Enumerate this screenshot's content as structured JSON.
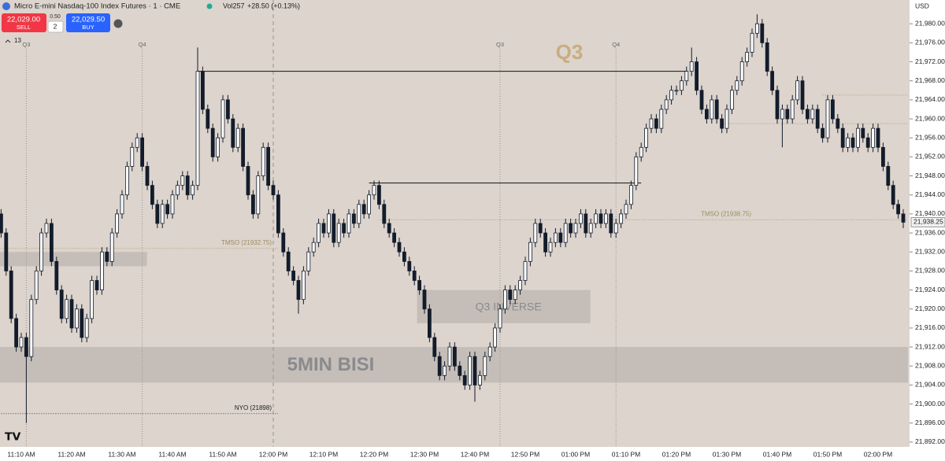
{
  "header": {
    "symbol": "Micro E-mini Nasdaq-100 Index Futures · 1 · CME",
    "volume": "Vol257",
    "change": "+28.50 (+0.13%)",
    "sell_price": "22,029.00",
    "sell": "SELL",
    "spread": "0.50",
    "quantity": "2",
    "buy_price": "22,029.50",
    "buy": "BUY",
    "indicator_count": "13",
    "currency": "USD"
  },
  "chart_data": {
    "type": "candlestick",
    "categories": [
      null,
      null,
      null,
      null,
      "11:10 AM",
      null,
      null,
      null,
      null,
      null,
      null,
      null,
      null,
      null,
      "11:20 AM",
      null,
      null,
      null,
      null,
      null,
      null,
      null,
      null,
      null,
      "11:30 AM",
      null,
      null,
      null,
      null,
      null,
      null,
      null,
      null,
      null,
      "11:40 AM",
      null,
      null,
      null,
      null,
      null,
      null,
      null,
      null,
      null,
      "11:50 AM",
      null,
      null,
      null,
      null,
      null,
      null,
      null,
      null,
      null,
      "12:00 PM",
      null,
      null,
      null,
      null,
      null,
      null,
      null,
      null,
      null,
      "12:10 PM",
      null,
      null,
      null,
      null,
      null,
      null,
      null,
      null,
      null,
      "12:20 PM",
      null,
      null,
      null,
      null,
      null,
      null,
      null,
      null,
      null,
      "12:30 PM",
      null,
      null,
      null,
      null,
      null,
      null,
      null,
      null,
      null,
      "12:40 PM",
      null,
      null,
      null,
      null,
      null,
      null,
      null,
      null,
      null,
      "12:50 PM",
      null,
      null,
      null,
      null,
      null,
      null,
      null,
      null,
      null,
      "01:00 PM",
      null,
      null,
      null,
      null,
      null,
      null,
      null,
      null,
      null,
      "01:10 PM",
      null,
      null,
      null,
      null,
      null,
      null,
      null,
      null,
      null,
      "01:20 PM",
      null,
      null,
      null,
      null,
      null,
      null,
      null,
      null,
      null,
      "01:30 PM",
      null,
      null,
      null,
      null,
      null,
      null,
      null,
      null,
      null,
      "01:40 PM",
      null,
      null,
      null,
      null,
      null,
      null,
      null,
      null,
      null,
      "01:50 PM",
      null,
      null,
      null,
      null,
      null,
      null,
      null,
      null,
      null,
      "02:00 PM",
      null,
      null,
      null,
      null,
      null
    ],
    "open": [
      21940,
      21936,
      21928,
      21918,
      21912,
      21914,
      21910,
      21922,
      21928,
      21936,
      21938,
      21930,
      21924,
      21918,
      21922,
      21916,
      21920,
      21914,
      21918,
      21926,
      21924,
      21932,
      21930,
      21936,
      21940,
      21944,
      21950,
      21954,
      21956,
      21950,
      21946,
      21942,
      21938,
      21942,
      21940,
      21944,
      21946,
      21948,
      21944,
      21946,
      21970,
      21962,
      21958,
      21952,
      21956,
      21964,
      21960,
      21954,
      21958,
      21950,
      21944,
      21940,
      21948,
      21954,
      21946,
      21944,
      21936,
      21932,
      21928,
      21926,
      21922,
      21928,
      21932,
      21934,
      21938,
      21936,
      21940,
      21934,
      21938,
      21936,
      21940,
      21938,
      21942,
      21940,
      21944,
      21946,
      21942,
      21938,
      21936,
      21934,
      21932,
      21930,
      21928,
      21926,
      21924,
      21920,
      21914,
      21910,
      21906,
      21908,
      21912,
      21908,
      21906,
      21904,
      21910,
      21904,
      21906,
      21910,
      21912,
      21916,
      21920,
      21924,
      21922,
      21924,
      21926,
      21930,
      21934,
      21938,
      21936,
      21932,
      21934,
      21936,
      21934,
      21938,
      21936,
      21938,
      21940,
      21936,
      21938,
      21940,
      21938,
      21940,
      21936,
      21938,
      21940,
      21942,
      21946,
      21952,
      21954,
      21958,
      21960,
      21958,
      21962,
      21964,
      21966,
      21966,
      21968,
      21970,
      21972,
      21966,
      21962,
      21960,
      21964,
      21960,
      21958,
      21962,
      21966,
      21968,
      21972,
      21974,
      21978,
      21980,
      21976,
      21970,
      21966,
      21960,
      21962,
      21960,
      21964,
      21968,
      21962,
      21960,
      21962,
      21958,
      21956,
      21964,
      21960,
      21958,
      21954,
      21956,
      21954,
      21958,
      21956,
      21954,
      21958,
      21954,
      21950,
      21946,
      21942,
      21940
    ],
    "high": [
      21941,
      21937,
      21929,
      21919,
      21915,
      21915,
      21923,
      21929,
      21937,
      21939,
      21939,
      21931,
      21925,
      21923,
      21923,
      21921,
      21921,
      21919,
      21927,
      21927,
      21933,
      21933,
      21937,
      21941,
      21945,
      21951,
      21955,
      21957,
      21957,
      21951,
      21947,
      21943,
      21943,
      21943,
      21945,
      21947,
      21949,
      21949,
      21947,
      21975,
      21971,
      21963,
      21959,
      21957,
      21965,
      21965,
      21961,
      21959,
      21959,
      21951,
      21945,
      21949,
      21955,
      21955,
      21947,
      21945,
      21937,
      21933,
      21929,
      21927,
      21929,
      21933,
      21935,
      21939,
      21939,
      21941,
      21941,
      21939,
      21939,
      21941,
      21941,
      21943,
      21943,
      21945,
      21947,
      21947,
      21943,
      21939,
      21937,
      21935,
      21933,
      21931,
      21929,
      21927,
      21925,
      21921,
      21915,
      21911,
      21909,
      21913,
      21913,
      21909,
      21907,
      21911,
      21911,
      21907,
      21911,
      21913,
      21917,
      21921,
      21925,
      21925,
      21925,
      21927,
      21931,
      21935,
      21939,
      21939,
      21937,
      21935,
      21937,
      21937,
      21939,
      21939,
      21939,
      21941,
      21941,
      21939,
      21941,
      21941,
      21941,
      21941,
      21939,
      21941,
      21943,
      21947,
      21953,
      21955,
      21959,
      21961,
      21961,
      21963,
      21965,
      21967,
      21967,
      21969,
      21971,
      21975,
      21973,
      21967,
      21963,
      21965,
      21965,
      21961,
      21963,
      21967,
      21969,
      21973,
      21975,
      21979,
      21982,
      21981,
      21977,
      21971,
      21967,
      21963,
      21963,
      21965,
      21969,
      21969,
      21963,
      21963,
      21963,
      21959,
      21965,
      21965,
      21961,
      21959,
      21957,
      21957,
      21959,
      21959,
      21957,
      21959,
      21959,
      21955,
      21951,
      21947,
      21943,
      21941
    ],
    "low": [
      21935,
      21927,
      21917,
      21911,
      21911,
      21896,
      21909,
      21921,
      21927,
      21935,
      21929,
      21923,
      21917,
      21917,
      21915,
      21915,
      21913,
      21913,
      21917,
      21923,
      21923,
      21929,
      21929,
      21935,
      21939,
      21943,
      21949,
      21953,
      21949,
      21945,
      21941,
      21937,
      21937,
      21939,
      21939,
      21943,
      21945,
      21943,
      21943,
      21945,
      21961,
      21957,
      21951,
      21951,
      21955,
      21959,
      21953,
      21953,
      21949,
      21943,
      21939,
      21939,
      21947,
      21945,
      21943,
      21935,
      21931,
      21927,
      21925,
      21919,
      21921,
      21927,
      21931,
      21933,
      21935,
      21935,
      21933,
      21933,
      21935,
      21935,
      21937,
      21937,
      21939,
      21939,
      21943,
      21941,
      21937,
      21935,
      21933,
      21931,
      21929,
      21927,
      21925,
      21923,
      21919,
      21913,
      21909,
      21905,
      21905,
      21907,
      21907,
      21905,
      21903,
      21903,
      21900.5,
      21903,
      21905,
      21909,
      21911,
      21915,
      21919,
      21921,
      21921,
      21923,
      21925,
      21929,
      21933,
      21935,
      21931,
      21931,
      21933,
      21933,
      21933,
      21935,
      21935,
      21937,
      21935,
      21935,
      21937,
      21937,
      21937,
      21935,
      21935,
      21937,
      21939,
      21941,
      21945,
      21951,
      21953,
      21957,
      21957,
      21957,
      21961,
      21963,
      21965,
      21965,
      21967,
      21969,
      21965,
      21961,
      21959,
      21959,
      21959,
      21957,
      21957,
      21961,
      21965,
      21967,
      21971,
      21973,
      21977,
      21975,
      21969,
      21965,
      21959,
      21954,
      21959,
      21959,
      21963,
      21961,
      21959,
      21959,
      21957,
      21955,
      21955,
      21959,
      21957,
      21953,
      21953,
      21953,
      21953,
      21955,
      21953,
      21953,
      21953,
      21949,
      21945,
      21941,
      21939,
      21937
    ],
    "close": [
      21936,
      21928,
      21918,
      21912,
      21914,
      21910,
      21922,
      21928,
      21936,
      21938,
      21930,
      21924,
      21918,
      21922,
      21916,
      21920,
      21914,
      21918,
      21926,
      21924,
      21932,
      21930,
      21936,
      21940,
      21944,
      21950,
      21954,
      21956,
      21950,
      21946,
      21942,
      21938,
      21942,
      21940,
      21944,
      21946,
      21948,
      21944,
      21946,
      21970,
      21962,
      21958,
      21952,
      21956,
      21964,
      21960,
      21954,
      21958,
      21950,
      21944,
      21940,
      21948,
      21954,
      21946,
      21944,
      21936,
      21932,
      21928,
      21926,
      21922,
      21928,
      21932,
      21934,
      21938,
      21936,
      21940,
      21934,
      21938,
      21936,
      21940,
      21938,
      21942,
      21940,
      21944,
      21946,
      21942,
      21938,
      21936,
      21934,
      21932,
      21930,
      21928,
      21926,
      21924,
      21920,
      21914,
      21910,
      21906,
      21908,
      21912,
      21908,
      21906,
      21904,
      21910,
      21904,
      21906,
      21910,
      21912,
      21916,
      21920,
      21924,
      21922,
      21924,
      21926,
      21930,
      21934,
      21938,
      21936,
      21932,
      21934,
      21936,
      21934,
      21938,
      21936,
      21938,
      21940,
      21936,
      21938,
      21940,
      21938,
      21940,
      21936,
      21938,
      21940,
      21942,
      21946,
      21952,
      21954,
      21958,
      21960,
      21958,
      21962,
      21964,
      21966,
      21966,
      21968,
      21970,
      21972,
      21966,
      21962,
      21960,
      21964,
      21960,
      21958,
      21962,
      21966,
      21968,
      21972,
      21974,
      21978,
      21980,
      21976,
      21970,
      21966,
      21960,
      21962,
      21960,
      21964,
      21968,
      21962,
      21960,
      21962,
      21958,
      21956,
      21964,
      21960,
      21958,
      21954,
      21956,
      21954,
      21958,
      21956,
      21954,
      21958,
      21954,
      21950,
      21946,
      21942,
      21940,
      21938.25
    ],
    "up_color": "#ffffff",
    "down_color": "#131c2b",
    "ylim": [
      21891,
      21985
    ],
    "yticks": [
      {
        "value": 21980,
        "label": "21,980.00"
      },
      {
        "value": 21976,
        "label": "21,976.00"
      },
      {
        "value": 21972,
        "label": "21,972.00"
      },
      {
        "value": 21968,
        "label": "21,968.00"
      },
      {
        "value": 21964,
        "label": "21,964.00"
      },
      {
        "value": 21960,
        "label": "21,960.00"
      },
      {
        "value": 21956,
        "label": "21,956.00"
      },
      {
        "value": 21952,
        "label": "21,952.00"
      },
      {
        "value": 21948,
        "label": "21,948.00"
      },
      {
        "value": 21944,
        "label": "21,944.00"
      },
      {
        "value": 21940,
        "label": "21,940.00"
      },
      {
        "value": 21936,
        "label": "21,936.00"
      },
      {
        "value": 21932,
        "label": "21,932.00"
      },
      {
        "value": 21928,
        "label": "21,928.00"
      },
      {
        "value": 21924,
        "label": "21,924.00"
      },
      {
        "value": 21920,
        "label": "21,920.00"
      },
      {
        "value": 21916,
        "label": "21,916.00"
      },
      {
        "value": 21912,
        "label": "21,912.00"
      },
      {
        "value": 21908,
        "label": "21,908.00"
      },
      {
        "value": 21904,
        "label": "21,904.00"
      },
      {
        "value": 21900,
        "label": "21,900.00"
      },
      {
        "value": 21896,
        "label": "21,896.00"
      },
      {
        "value": 21892,
        "label": "21,892.00"
      }
    ],
    "last_label": "21,938.25",
    "zones": [
      {
        "label": "5MIN BISI",
        "top": 21912,
        "bottom": 21904.5,
        "from": 0,
        "to": 179
      },
      {
        "label": "Q3 INVERSE",
        "top": 21924,
        "bottom": 21917,
        "from": 83,
        "to": 116
      },
      {
        "top": 21932,
        "bottom": 21929,
        "from": 0,
        "to": 28
      }
    ],
    "levels": [
      {
        "value": 21970,
        "from": 39,
        "to": 136
      },
      {
        "value": 21946.5,
        "from": 73,
        "to": 127
      }
    ],
    "dotted_levels": [
      {
        "label": "TMSO (21938.75)",
        "value": 21938.75,
        "from": 75,
        "to": 179
      },
      {
        "label": "TMSO (21932.75)",
        "value": 21932.75,
        "from": 0,
        "to": 54
      },
      {
        "label": "NYO (21898)",
        "value": 21898,
        "from": 0,
        "to": 54
      },
      {
        "value": 21959,
        "from": 143,
        "to": 179
      },
      {
        "value": 21965,
        "from": 163,
        "to": 179
      }
    ],
    "quarter_lines": [
      {
        "label": "Q3",
        "index": 5
      },
      {
        "label": "Q4",
        "index": 28
      },
      {
        "label": "Q3",
        "index": 99
      },
      {
        "label": "Q4",
        "index": 122
      }
    ],
    "session_line": 54,
    "big_label": "Q3"
  }
}
